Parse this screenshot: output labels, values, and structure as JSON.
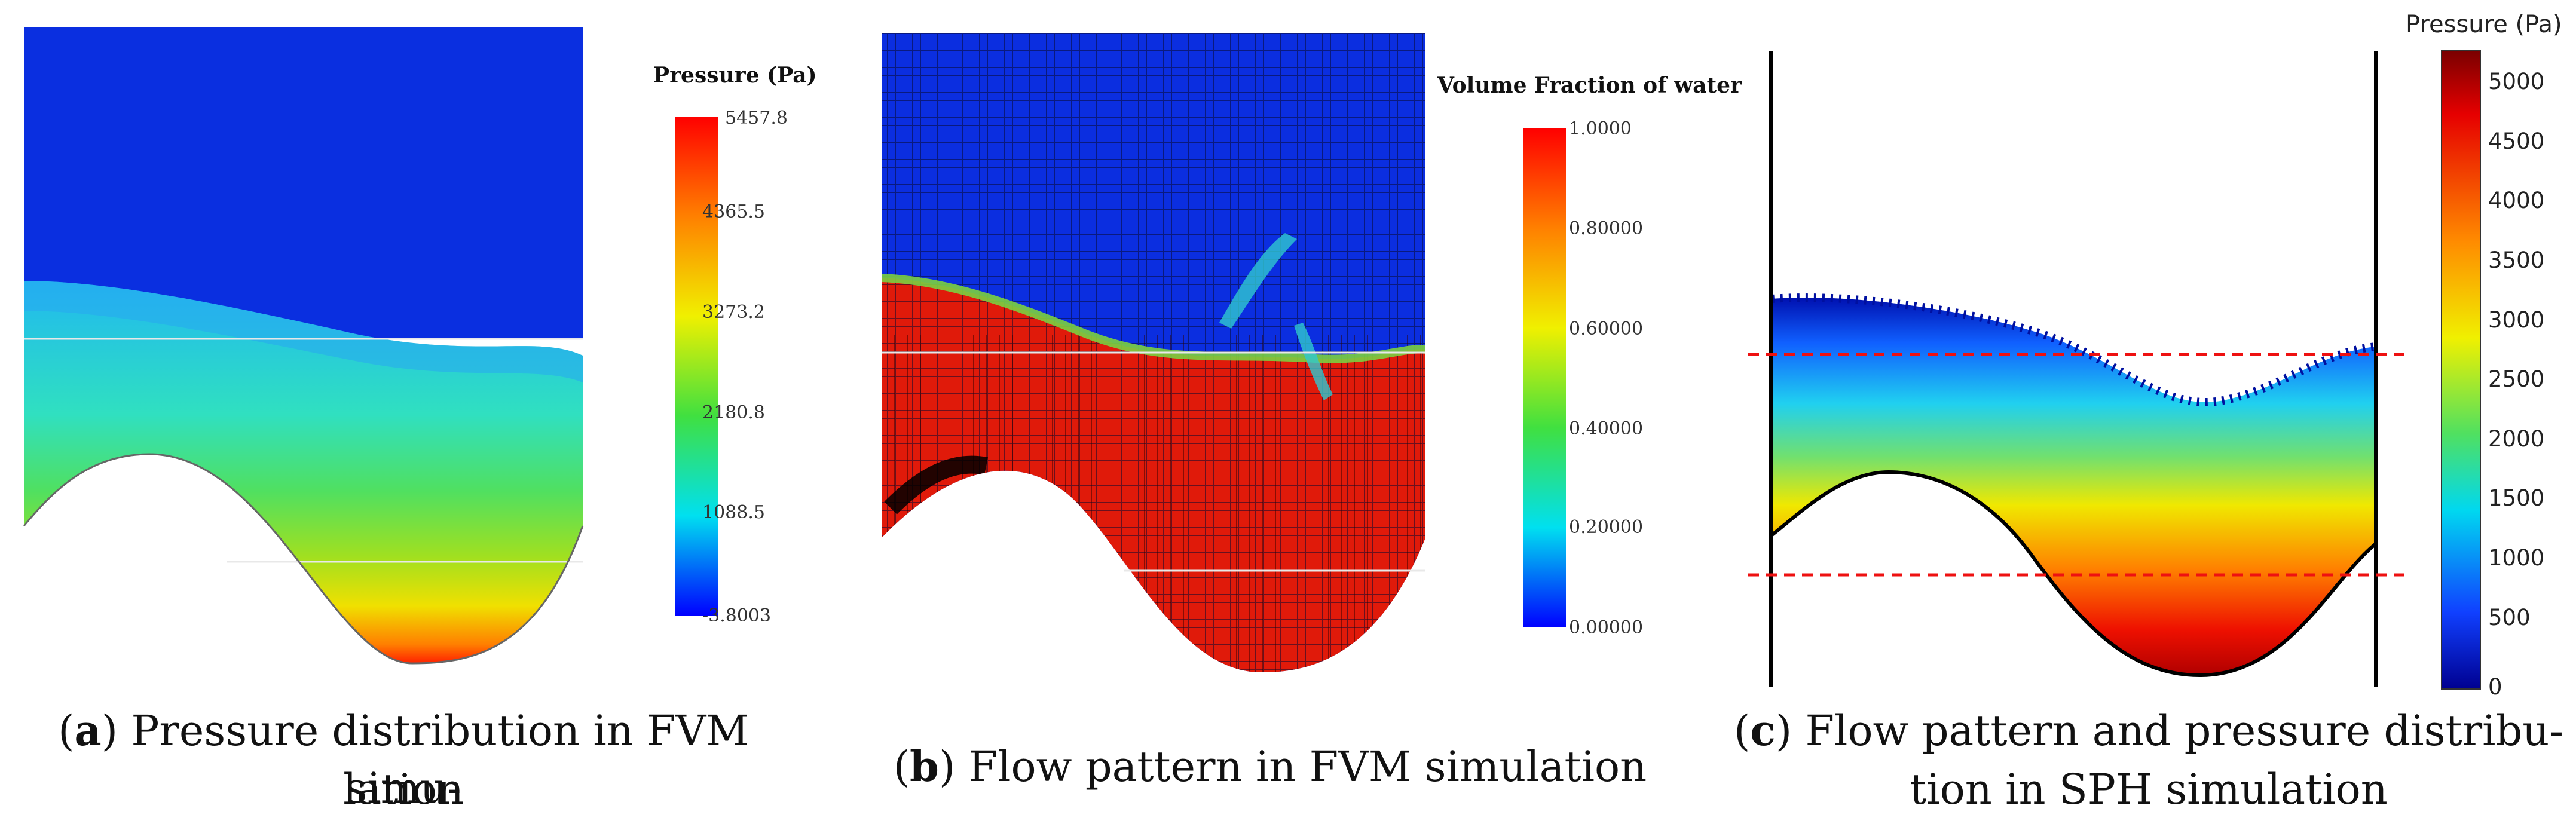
{
  "panels": [
    {
      "id": "a",
      "caption_letter": "a",
      "caption_line1": ") Pressure distribution in FVM simu-",
      "caption_line2": "lation",
      "colorbar_title": "Pressure (Pa)",
      "colorbar_ticks": [
        "5457.8",
        "4365.5",
        "3273.2",
        "2180.8",
        "1088.5",
        "-3.8003"
      ]
    },
    {
      "id": "b",
      "caption_letter": "b",
      "caption_line1": ") Flow pattern in FVM simulation",
      "colorbar_title": "Volume Fraction of water",
      "colorbar_ticks": [
        "1.0000",
        "0.80000",
        "0.60000",
        "0.40000",
        "0.20000",
        "0.00000"
      ]
    },
    {
      "id": "c",
      "caption_letter": "c",
      "caption_line1": ") Flow pattern and pressure distribu-",
      "caption_line2": "tion in SPH simulation",
      "colorbar_title": "Pressure (Pa)",
      "colorbar_ticks": [
        "5000",
        "4500",
        "4000",
        "3500",
        "3000",
        "2500",
        "2000",
        "1500",
        "1000",
        "500",
        "0"
      ]
    }
  ],
  "colors": {
    "fluid_blue": "#0a2fe0",
    "water_red": "#e01a0a",
    "reference_dashed": "#ee1111"
  }
}
